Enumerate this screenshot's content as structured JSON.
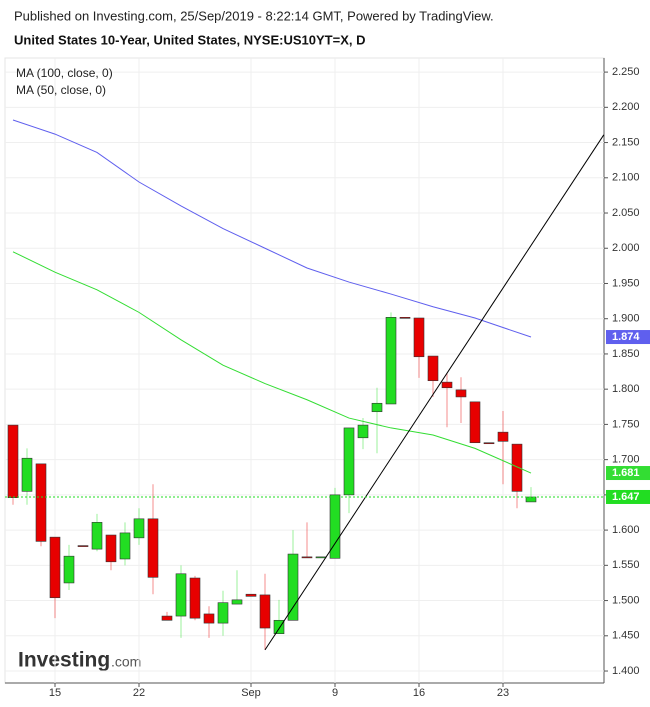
{
  "chart_data": {
    "type": "candlestick",
    "subtitle": "Published on Investing.com, 25/Sep/2019 - 8:22:14 GMT, Powered by TradingView.",
    "title": "United States 10-Year, United States, NYSE:US10YT=X, D",
    "logo": "Investing",
    "logo_suffix": ".com",
    "categories": [
      null,
      null,
      null,
      "15",
      null,
      null,
      null,
      null,
      null,
      "22",
      null,
      null,
      null,
      null,
      null,
      null,
      null,
      "Sep",
      null,
      null,
      null,
      null,
      null,
      "9",
      null,
      null,
      null,
      null,
      null,
      "16",
      null,
      null,
      null,
      null,
      null,
      "23",
      null,
      null
    ],
    "open": [
      1.749,
      1.655,
      1.694,
      1.59,
      1.525,
      1.578,
      1.573,
      1.593,
      1.559,
      1.589,
      1.616,
      1.478,
      1.478,
      1.532,
      1.481,
      1.468,
      1.495,
      1.509,
      1.508,
      1.453,
      1.472,
      1.562,
      1.561,
      1.56,
      1.65,
      1.731,
      1.768,
      1.779,
      1.902,
      1.901,
      1.847,
      1.81,
      1.799,
      1.782,
      1.724,
      1.739,
      1.722,
      1.64
    ],
    "high": [
      1.749,
      1.716,
      1.694,
      1.59,
      1.579,
      1.578,
      1.623,
      1.593,
      1.611,
      1.631,
      1.665,
      1.484,
      1.55,
      1.535,
      1.492,
      1.514,
      1.543,
      1.509,
      1.538,
      1.501,
      1.6,
      1.611,
      1.562,
      1.66,
      1.745,
      1.759,
      1.802,
      1.909,
      1.902,
      1.901,
      1.847,
      1.823,
      1.817,
      1.782,
      1.724,
      1.769,
      1.722,
      1.661
    ],
    "low": [
      1.636,
      1.636,
      1.577,
      1.475,
      1.515,
      1.577,
      1.57,
      1.543,
      1.55,
      1.579,
      1.509,
      1.472,
      1.447,
      1.472,
      1.447,
      1.45,
      1.495,
      1.506,
      1.43,
      1.453,
      1.472,
      1.561,
      1.561,
      1.56,
      1.624,
      1.715,
      1.709,
      1.779,
      1.901,
      1.816,
      1.789,
      1.746,
      1.752,
      1.724,
      1.723,
      1.665,
      1.631,
      1.64
    ],
    "close": [
      1.646,
      1.702,
      1.584,
      1.504,
      1.563,
      1.577,
      1.611,
      1.555,
      1.596,
      1.616,
      1.533,
      1.472,
      1.538,
      1.475,
      1.468,
      1.497,
      1.501,
      1.506,
      1.461,
      1.472,
      1.566,
      1.561,
      1.562,
      1.65,
      1.745,
      1.749,
      1.78,
      1.902,
      1.901,
      1.846,
      1.812,
      1.802,
      1.789,
      1.724,
      1.723,
      1.726,
      1.655,
      1.647
    ],
    "up_color": "#22dd22",
    "down_color": "#e80000",
    "series": [
      {
        "name": "MA (100, close, 0)",
        "color": "#5f5fee",
        "x": [
          0,
          3,
          6,
          9,
          12,
          15,
          18,
          21,
          24,
          27,
          30,
          33,
          37
        ],
        "values": [
          2.182,
          2.162,
          2.136,
          2.094,
          2.06,
          2.028,
          2.0,
          1.972,
          1.952,
          1.935,
          1.917,
          1.901,
          1.874
        ]
      },
      {
        "name": "MA (50, close, 0)",
        "color": "#33dd33",
        "x": [
          0,
          3,
          6,
          9,
          12,
          15,
          18,
          21,
          24,
          27,
          30,
          33,
          37
        ],
        "values": [
          1.995,
          1.966,
          1.941,
          1.909,
          1.87,
          1.834,
          1.808,
          1.785,
          1.759,
          1.745,
          1.735,
          1.716,
          1.681
        ]
      }
    ],
    "trendline": {
      "color": "#000000",
      "x": [
        18,
        42.2
      ],
      "values": [
        1.43,
        2.161
      ]
    },
    "ylim": [
      1.383,
      2.27
    ],
    "yticks": [
      {
        "value": 1.4,
        "label": "1.400"
      },
      {
        "value": 1.45,
        "label": "1.450"
      },
      {
        "value": 1.5,
        "label": "1.500"
      },
      {
        "value": 1.55,
        "label": "1.550"
      },
      {
        "value": 1.6,
        "label": "1.600"
      },
      {
        "value": 1.65,
        "label": "1.650"
      },
      {
        "value": 1.7,
        "label": "1.700"
      },
      {
        "value": 1.75,
        "label": "1.750"
      },
      {
        "value": 1.8,
        "label": "1.800"
      },
      {
        "value": 1.85,
        "label": "1.850"
      },
      {
        "value": 1.9,
        "label": "1.900"
      },
      {
        "value": 1.95,
        "label": "1.950"
      },
      {
        "value": 2.0,
        "label": "2.000"
      },
      {
        "value": 2.05,
        "label": "2.050"
      },
      {
        "value": 2.1,
        "label": "2.100"
      },
      {
        "value": 2.15,
        "label": "2.150"
      },
      {
        "value": 2.2,
        "label": "2.200"
      },
      {
        "value": 2.25,
        "label": "2.250"
      }
    ],
    "grid": true
  }
}
